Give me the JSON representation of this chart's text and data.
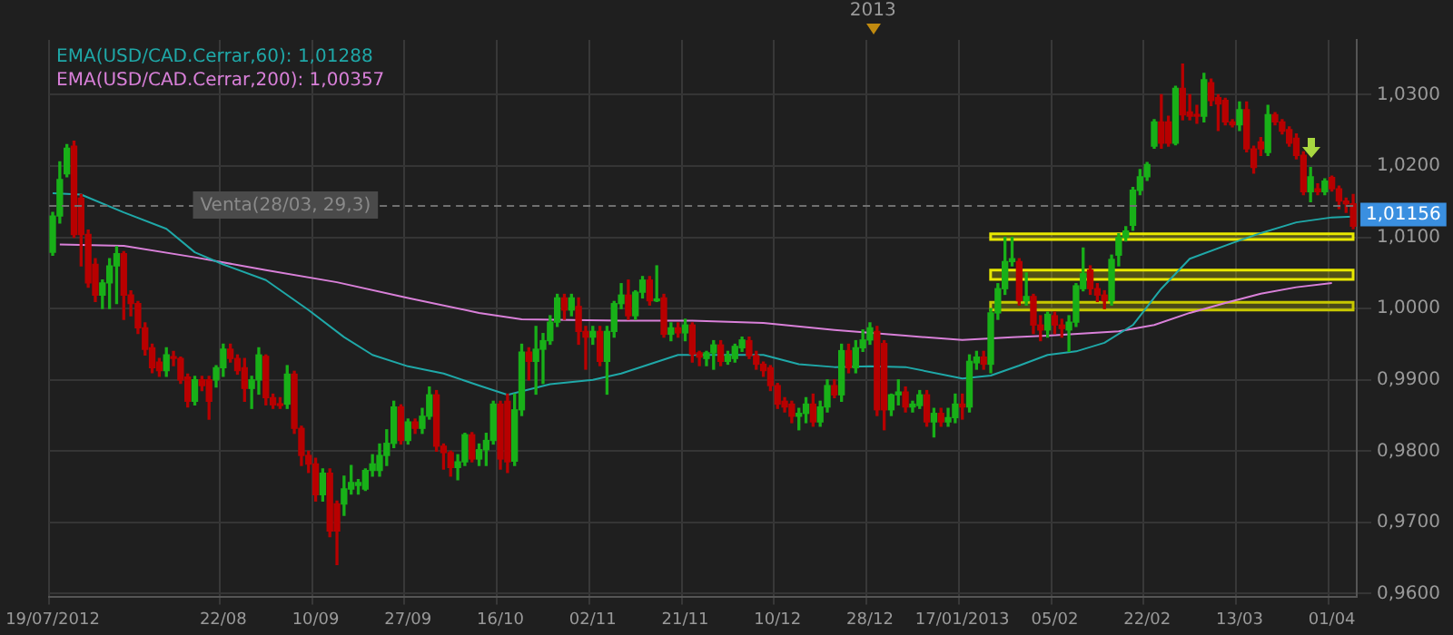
{
  "chart_data": {
    "type": "candlestick",
    "categories": [
      "19/07/2012",
      null,
      null,
      null,
      null,
      null,
      null,
      null,
      null,
      null,
      null,
      null,
      null,
      null,
      null,
      null,
      null,
      null,
      null,
      null,
      null,
      null,
      null,
      null,
      "22/08",
      null,
      null,
      null,
      null,
      null,
      null,
      null,
      null,
      null,
      null,
      null,
      null,
      "10/09",
      null,
      null,
      null,
      null,
      null,
      null,
      null,
      null,
      null,
      null,
      null,
      null,
      "27/09",
      null,
      null,
      null,
      null,
      null,
      null,
      null,
      null,
      null,
      null,
      null,
      null,
      "16/10",
      null,
      null,
      null,
      null,
      null,
      null,
      null,
      null,
      null,
      null,
      null,
      null,
      "02/11",
      null,
      null,
      null,
      null,
      null,
      null,
      null,
      null,
      null,
      null,
      null,
      null,
      "21/11",
      null,
      null,
      null,
      null,
      null,
      null,
      null,
      null,
      null,
      null,
      null,
      null,
      "10/12",
      null,
      null,
      null,
      null,
      null,
      null,
      null,
      null,
      null,
      null,
      null,
      null,
      "28/12",
      null,
      null,
      null,
      null,
      null,
      null,
      null,
      null,
      null,
      null,
      null,
      null,
      "17/01/2013",
      null,
      null,
      null,
      null,
      null,
      null,
      null,
      null,
      null,
      null,
      null,
      null,
      "05/02",
      null,
      null,
      null,
      null,
      null,
      null,
      null,
      null,
      null,
      null,
      null,
      null,
      "22/02",
      null,
      null,
      null,
      null,
      null,
      null,
      null,
      null,
      null,
      null,
      null,
      null,
      "13/03",
      null,
      null,
      null,
      null,
      null,
      null,
      null,
      null,
      null,
      null,
      null,
      null,
      "01/04",
      null,
      null,
      null
    ],
    "ohlc": [
      [
        1.0079,
        1.0135,
        1.0075,
        1.013
      ],
      [
        1.013,
        1.0206,
        1.012,
        1.0181
      ],
      [
        1.0189,
        1.023,
        1.0185,
        1.0225
      ],
      [
        1.0228,
        1.0235,
        1.01,
        1.0104
      ],
      [
        1.0155,
        1.016,
        1.006,
        1.0104
      ],
      [
        1.0104,
        1.011,
        1.003,
        1.0036
      ],
      [
        1.0062,
        1.007,
        1.001,
        1.0019
      ],
      [
        1.0019,
        1.004,
        1.0,
        1.0036
      ],
      [
        1.0036,
        1.007,
        1.0,
        1.006
      ],
      [
        1.006,
        1.0087,
        1.0007,
        1.0077
      ],
      [
        1.0077,
        1.008,
        0.9985,
        1.0019
      ],
      [
        1.0019,
        1.0025,
        0.999,
        1.0007
      ],
      [
        1.0007,
        1.001,
        0.9965,
        0.9973
      ],
      [
        0.9973,
        0.998,
        0.9935,
        0.9943
      ],
      [
        0.9945,
        0.995,
        0.991,
        0.9917
      ],
      [
        0.9925,
        0.993,
        0.9905,
        0.9913
      ],
      [
        0.9913,
        0.9945,
        0.9905,
        0.9935
      ],
      [
        0.9932,
        0.994,
        0.992,
        0.993
      ],
      [
        0.993,
        0.9932,
        0.9895,
        0.99
      ],
      [
        0.9904,
        0.9908,
        0.9862,
        0.987
      ],
      [
        0.987,
        0.9905,
        0.9865,
        0.99
      ],
      [
        0.99,
        0.9905,
        0.9885,
        0.9892
      ],
      [
        0.99,
        0.9905,
        0.9845,
        0.987
      ],
      [
        0.99,
        0.992,
        0.989,
        0.9917
      ],
      [
        0.9917,
        0.995,
        0.9905,
        0.9943
      ],
      [
        0.9943,
        0.995,
        0.9925,
        0.993
      ],
      [
        0.993,
        0.9935,
        0.9908,
        0.9913
      ],
      [
        0.9917,
        0.993,
        0.987,
        0.9888
      ],
      [
        0.9888,
        0.9905,
        0.986,
        0.99
      ],
      [
        0.99,
        0.9945,
        0.988,
        0.9935
      ],
      [
        0.9933,
        0.9935,
        0.9865,
        0.9875
      ],
      [
        0.9875,
        0.988,
        0.986,
        0.9865
      ],
      [
        0.9866,
        0.9875,
        0.986,
        0.9864
      ],
      [
        0.9866,
        0.992,
        0.986,
        0.9908
      ],
      [
        0.9908,
        0.9912,
        0.9825,
        0.9832
      ],
      [
        0.9832,
        0.9835,
        0.978,
        0.9794
      ],
      [
        0.9794,
        0.98,
        0.977,
        0.9782
      ],
      [
        0.9782,
        0.979,
        0.973,
        0.9739
      ],
      [
        0.9739,
        0.9775,
        0.973,
        0.9769
      ],
      [
        0.9769,
        0.9775,
        0.968,
        0.9688
      ],
      [
        0.9726,
        0.973,
        0.9641,
        0.9688
      ],
      [
        0.9726,
        0.9765,
        0.971,
        0.9747
      ],
      [
        0.9747,
        0.978,
        0.974,
        0.9756
      ],
      [
        0.9752,
        0.976,
        0.974,
        0.9756
      ],
      [
        0.9747,
        0.9775,
        0.9745,
        0.9773
      ],
      [
        0.9773,
        0.9795,
        0.9765,
        0.9782
      ],
      [
        0.9773,
        0.981,
        0.9765,
        0.9794
      ],
      [
        0.9794,
        0.983,
        0.978,
        0.9811
      ],
      [
        0.9811,
        0.987,
        0.9805,
        0.9862
      ],
      [
        0.9862,
        0.9865,
        0.981,
        0.9815
      ],
      [
        0.9815,
        0.9845,
        0.981,
        0.9841
      ],
      [
        0.9841,
        0.9845,
        0.9825,
        0.9832
      ],
      [
        0.9832,
        0.986,
        0.9825,
        0.9849
      ],
      [
        0.9849,
        0.989,
        0.9845,
        0.9879
      ],
      [
        0.9879,
        0.9885,
        0.98,
        0.9807
      ],
      [
        0.9807,
        0.981,
        0.9775,
        0.9798
      ],
      [
        0.9798,
        0.98,
        0.9765,
        0.9777
      ],
      [
        0.9777,
        0.9795,
        0.976,
        0.9785
      ],
      [
        0.9785,
        0.9825,
        0.978,
        0.9823
      ],
      [
        0.9823,
        0.9826,
        0.9785,
        0.9789
      ],
      [
        0.9789,
        0.981,
        0.978,
        0.9802
      ],
      [
        0.9802,
        0.9825,
        0.978,
        0.9815
      ],
      [
        0.9815,
        0.987,
        0.981,
        0.9866
      ],
      [
        0.9866,
        0.987,
        0.9775,
        0.9789
      ],
      [
        0.987,
        0.988,
        0.977,
        0.9785
      ],
      [
        0.9786,
        0.988,
        0.978,
        0.9858
      ],
      [
        0.9858,
        0.995,
        0.985,
        0.9939
      ],
      [
        0.9939,
        0.9945,
        0.99,
        0.9926
      ],
      [
        0.9926,
        0.9975,
        0.988,
        0.9943
      ],
      [
        0.9943,
        0.9965,
        0.9895,
        0.9955
      ],
      [
        0.9955,
        0.999,
        0.995,
        0.9981
      ],
      [
        0.9981,
        1.002,
        0.9975,
        1.0015
      ],
      [
        1.0015,
        1.002,
        0.9985,
        0.9998
      ],
      [
        0.9998,
        1.002,
        0.999,
        1.0015
      ],
      [
        1.0003,
        1.0015,
        0.995,
        0.9968
      ],
      [
        0.9968,
        0.9975,
        0.9915,
        0.996
      ],
      [
        0.996,
        0.9975,
        0.995,
        0.9968
      ],
      [
        0.9968,
        0.9975,
        0.992,
        0.9926
      ],
      [
        0.9926,
        0.9975,
        0.988,
        0.9968
      ],
      [
        0.9968,
        1.001,
        0.996,
        1.0007
      ],
      [
        1.0007,
        1.0035,
        1.0,
        1.0019
      ],
      [
        1.0019,
        1.004,
        0.9985,
        0.999
      ],
      [
        0.999,
        1.0025,
        0.9985,
        1.0023
      ],
      [
        1.0023,
        1.0045,
        1.0015,
        1.004
      ],
      [
        1.004,
        1.0045,
        1.0005,
        1.0011
      ],
      [
        1.0011,
        1.006,
        1.001,
        1.0013
      ],
      [
        1.0015,
        1.002,
        0.996,
        0.9964
      ],
      [
        0.9964,
        0.998,
        0.9955,
        0.9973
      ],
      [
        0.9973,
        0.998,
        0.996,
        0.9966
      ],
      [
        0.9966,
        0.9985,
        0.9955,
        0.9977
      ],
      [
        0.9977,
        0.998,
        0.9925,
        0.9936
      ],
      [
        0.9938,
        0.994,
        0.992,
        0.9932
      ],
      [
        0.993,
        0.994,
        0.992,
        0.9938
      ],
      [
        0.9938,
        0.9955,
        0.9915,
        0.9949
      ],
      [
        0.9949,
        0.9955,
        0.992,
        0.9926
      ],
      [
        0.9926,
        0.994,
        0.9922,
        0.9934
      ],
      [
        0.993,
        0.995,
        0.9925,
        0.9947
      ],
      [
        0.9945,
        0.996,
        0.994,
        0.9956
      ],
      [
        0.9955,
        0.996,
        0.993,
        0.9934
      ],
      [
        0.9934,
        0.994,
        0.9915,
        0.9922
      ],
      [
        0.9922,
        0.9925,
        0.9905,
        0.9913
      ],
      [
        0.9917,
        0.992,
        0.9885,
        0.9892
      ],
      [
        0.9892,
        0.9895,
        0.986,
        0.9866
      ],
      [
        0.987,
        0.9875,
        0.9855,
        0.9862
      ],
      [
        0.9866,
        0.987,
        0.984,
        0.9849
      ],
      [
        0.9849,
        0.986,
        0.983,
        0.9853
      ],
      [
        0.9853,
        0.9875,
        0.984,
        0.9866
      ],
      [
        0.9866,
        0.988,
        0.9835,
        0.9841
      ],
      [
        0.9841,
        0.987,
        0.9835,
        0.9862
      ],
      [
        0.9862,
        0.99,
        0.9855,
        0.9892
      ],
      [
        0.9892,
        0.99,
        0.9875,
        0.9879
      ],
      [
        0.9879,
        0.995,
        0.987,
        0.9941
      ],
      [
        0.9941,
        0.995,
        0.991,
        0.9917
      ],
      [
        0.9917,
        0.9955,
        0.991,
        0.9945
      ],
      [
        0.9945,
        0.997,
        0.994,
        0.9956
      ],
      [
        0.9956,
        0.998,
        0.995,
        0.9973
      ],
      [
        0.9968,
        0.9975,
        0.985,
        0.9858
      ],
      [
        0.9951,
        0.9955,
        0.983,
        0.9858
      ],
      [
        0.9858,
        0.988,
        0.985,
        0.9879
      ],
      [
        0.9879,
        0.99,
        0.9865,
        0.9883
      ],
      [
        0.9883,
        0.989,
        0.9855,
        0.9862
      ],
      [
        0.9862,
        0.987,
        0.9855,
        0.9866
      ],
      [
        0.9864,
        0.9885,
        0.986,
        0.9879
      ],
      [
        0.9879,
        0.9885,
        0.9835,
        0.9841
      ],
      [
        0.9841,
        0.986,
        0.982,
        0.9853
      ],
      [
        0.9853,
        0.986,
        0.9835,
        0.9841
      ],
      [
        0.9841,
        0.986,
        0.9835,
        0.9847
      ],
      [
        0.9847,
        0.988,
        0.984,
        0.9866
      ],
      [
        0.9866,
        0.988,
        0.9845,
        0.9862
      ],
      [
        0.9862,
        0.9935,
        0.9855,
        0.9926
      ],
      [
        0.9924,
        0.994,
        0.9915,
        0.9932
      ],
      [
        0.9932,
        0.994,
        0.9915,
        0.9922
      ],
      [
        0.9922,
        1.0,
        0.991,
        0.9994
      ],
      [
        0.9994,
        1.0035,
        0.9985,
        1.0028
      ],
      [
        1.0028,
        1.01,
        1.002,
        1.0066
      ],
      [
        1.0066,
        1.01,
        1.006,
        1.007
      ],
      [
        1.0066,
        1.007,
        1.0005,
        1.0011
      ],
      [
        1.0011,
        1.005,
        1.0005,
        1.0017
      ],
      [
        1.0017,
        1.002,
        0.9965,
        0.9977
      ],
      [
        0.9977,
        0.999,
        0.9955,
        0.997
      ],
      [
        0.997,
        0.9995,
        0.996,
        0.9992
      ],
      [
        0.999,
        0.9995,
        0.9965,
        0.9977
      ],
      [
        0.9977,
        0.9985,
        0.996,
        0.9972
      ],
      [
        0.997,
        0.999,
        0.994,
        0.9981
      ],
      [
        0.9981,
        1.0035,
        0.9975,
        1.0032
      ],
      [
        1.0028,
        1.0085,
        1.0025,
        1.0049
      ],
      [
        1.0054,
        1.006,
        1.002,
        1.0028
      ],
      [
        1.0028,
        1.0035,
        1.001,
        1.0019
      ],
      [
        1.0019,
        1.0025,
        1.0,
        1.0011
      ],
      [
        1.0011,
        1.0075,
        1.0005,
        1.0069
      ],
      [
        1.0075,
        1.0105,
        1.006,
        1.01
      ],
      [
        1.01,
        1.0115,
        1.0095,
        1.0109
      ],
      [
        1.0117,
        1.017,
        1.011,
        1.0166
      ],
      [
        1.0166,
        1.0195,
        1.016,
        1.0185
      ],
      [
        1.0185,
        1.0205,
        1.018,
        1.0202
      ],
      [
        1.0228,
        1.0265,
        1.0225,
        1.0262
      ],
      [
        1.0262,
        1.03,
        1.0225,
        1.0232
      ],
      [
        1.0262,
        1.027,
        1.0228,
        1.0232
      ],
      [
        1.0232,
        1.0312,
        1.023,
        1.0309
      ],
      [
        1.0309,
        1.0343,
        1.0265,
        1.0272
      ],
      [
        1.0276,
        1.03,
        1.0265,
        1.027
      ],
      [
        1.0272,
        1.0285,
        1.026,
        1.027
      ],
      [
        1.027,
        1.033,
        1.0262,
        1.0321
      ],
      [
        1.0317,
        1.0322,
        1.0285,
        1.0292
      ],
      [
        1.0296,
        1.03,
        1.025,
        1.0287
      ],
      [
        1.0292,
        1.0295,
        1.0258,
        1.0262
      ],
      [
        1.0262,
        1.0265,
        1.0255,
        1.0258
      ],
      [
        1.0258,
        1.029,
        1.025,
        1.0279
      ],
      [
        1.0279,
        1.029,
        1.022,
        1.0224
      ],
      [
        1.0224,
        1.0228,
        1.019,
        1.0198
      ],
      [
        1.0234,
        1.024,
        1.0215,
        1.0224
      ],
      [
        1.0219,
        1.0285,
        1.0215,
        1.0272
      ],
      [
        1.0272,
        1.0275,
        1.0258,
        1.0262
      ],
      [
        1.0262,
        1.0265,
        1.0245,
        1.0249
      ],
      [
        1.0251,
        1.0255,
        1.0228,
        1.0232
      ],
      [
        1.0239,
        1.0245,
        1.021,
        1.0215
      ],
      [
        1.0215,
        1.022,
        1.016,
        1.0164
      ],
      [
        1.0164,
        1.0198,
        1.015,
        1.0185
      ],
      [
        1.0168,
        1.0175,
        1.016,
        1.0164
      ],
      [
        1.0164,
        1.0182,
        1.016,
        1.0179
      ],
      [
        1.0184,
        1.0186,
        1.0165,
        1.0168
      ],
      [
        1.0168,
        1.0172,
        1.014,
        1.0151
      ],
      [
        1.0151,
        1.0155,
        1.0135,
        1.0147
      ],
      [
        1.0147,
        1.016,
        1.0112,
        1.01156
      ]
    ],
    "series": [
      {
        "type": "line",
        "name": "EMA(USD/CAD.Cerrar,60): 1,01288",
        "color": "#1fa8a8",
        "values": [
          1.0162,
          null,
          null,
          null,
          1.016,
          null,
          null,
          null,
          null,
          null,
          1.0135,
          null,
          null,
          null,
          null,
          null,
          1.0112,
          null,
          null,
          null,
          1.0079,
          null,
          null,
          null,
          1.0062,
          null,
          null,
          null,
          null,
          null,
          1.004,
          null,
          null,
          null,
          null,
          null,
          0.9998,
          null,
          null,
          null,
          null,
          0.996,
          null,
          null,
          null,
          0.9935,
          null,
          null,
          null,
          null,
          0.9919,
          null,
          null,
          null,
          null,
          0.9909,
          null,
          null,
          null,
          null,
          0.9892,
          null,
          null,
          null,
          0.9879,
          null,
          null,
          null,
          null,
          null,
          0.9894,
          null,
          null,
          null,
          null,
          null,
          0.99,
          null,
          null,
          null,
          0.9909,
          null,
          null,
          null,
          null,
          null,
          null,
          null,
          0.9935,
          null,
          null,
          null,
          null,
          null,
          null,
          0.9935,
          null,
          null,
          null,
          null,
          0.9935,
          null,
          null,
          null,
          null,
          0.9922,
          null,
          null,
          null,
          null,
          0.9918,
          null,
          null,
          null,
          null,
          0.9919,
          null,
          null,
          null,
          null,
          0.9918,
          null,
          null,
          null,
          null,
          null,
          null,
          null,
          0.9902,
          null,
          null,
          null,
          0.9906,
          null,
          null,
          null,
          0.992,
          null,
          null,
          null,
          0.9935,
          null,
          null,
          null,
          0.994,
          null,
          null,
          null,
          0.9952,
          null,
          null,
          null,
          0.9977,
          null,
          null,
          null,
          1.0028,
          null,
          null,
          null,
          1.007,
          null,
          null,
          null,
          null,
          null,
          1.0092,
          null,
          null,
          null,
          1.0106,
          null,
          null,
          null,
          null,
          1.0121,
          null,
          null,
          null,
          null,
          1.0128,
          null,
          null,
          1.0129
        ]
      },
      {
        "type": "line",
        "name": "EMA(USD/CAD.Cerrar,200): 1,00357",
        "color": "#d980d9",
        "values": [
          null,
          1.009,
          null,
          null,
          null,
          null,
          null,
          null,
          null,
          null,
          1.0088,
          null,
          null,
          null,
          null,
          null,
          null,
          null,
          null,
          null,
          1.0072,
          null,
          null,
          null,
          null,
          null,
          null,
          null,
          null,
          null,
          1.0054,
          null,
          null,
          null,
          null,
          null,
          null,
          null,
          null,
          null,
          1.0037,
          null,
          null,
          null,
          null,
          null,
          null,
          null,
          null,
          null,
          1.0015,
          null,
          null,
          null,
          null,
          null,
          null,
          null,
          null,
          null,
          0.9994,
          null,
          null,
          null,
          null,
          null,
          0.9985,
          null,
          null,
          null,
          null,
          null,
          null,
          null,
          null,
          null,
          null,
          null,
          null,
          null,
          0.9983,
          null,
          null,
          null,
          null,
          null,
          null,
          null,
          null,
          null,
          0.9983,
          null,
          null,
          null,
          null,
          null,
          null,
          null,
          null,
          null,
          0.998,
          null,
          null,
          null,
          null,
          null,
          null,
          null,
          null,
          null,
          0.997,
          null,
          null,
          null,
          null,
          null,
          null,
          null,
          null,
          null,
          0.9962,
          null,
          null,
          null,
          null,
          null,
          null,
          null,
          0.9956,
          null,
          null,
          null,
          null,
          null,
          null,
          0.996,
          null,
          null,
          null,
          null,
          0.9962,
          null,
          null,
          null,
          null,
          null,
          null,
          null,
          null,
          null,
          0.9968,
          null,
          null,
          null,
          null,
          0.9977,
          null,
          null,
          null,
          null,
          0.9994,
          null,
          null,
          null,
          null,
          1.0008,
          null,
          null,
          null,
          null,
          1.0021,
          null,
          null,
          null,
          null,
          1.003,
          null,
          null,
          null,
          null,
          1.0036,
          null,
          null,
          null
        ]
      }
    ],
    "ylim": [
      0.9595,
      1.0377
    ],
    "yticks": [
      {
        "value": 0.96,
        "label": "0,9600"
      },
      {
        "value": 0.97,
        "label": "0,9700"
      },
      {
        "value": 0.98,
        "label": "0,9800"
      },
      {
        "value": 0.99,
        "label": "0,9900"
      },
      {
        "value": 1.0,
        "label": "1,0000"
      },
      {
        "value": 1.01,
        "label": "1,0100"
      },
      {
        "value": 1.02,
        "label": "1,0200"
      },
      {
        "value": 1.03,
        "label": "1,0300"
      }
    ],
    "grid": true,
    "legend": "top left",
    "ref_lines": [
      {
        "axis": "y",
        "value": 1.0146,
        "label": "Venta(28/03, 29,3)",
        "line_style": "dashed",
        "color": "#707070"
      }
    ],
    "bands": [
      {
        "axis": "y",
        "from": 1.0097,
        "to": 1.0105,
        "color": "#e8e800"
      },
      {
        "axis": "y",
        "from": 1.0041,
        "to": 1.0054,
        "color": "#e8e800"
      },
      {
        "axis": "y",
        "from": 0.9998,
        "to": 1.0009,
        "color": "#c8c800"
      }
    ],
    "annotations": [
      "2013",
      "1,01156"
    ]
  }
}
